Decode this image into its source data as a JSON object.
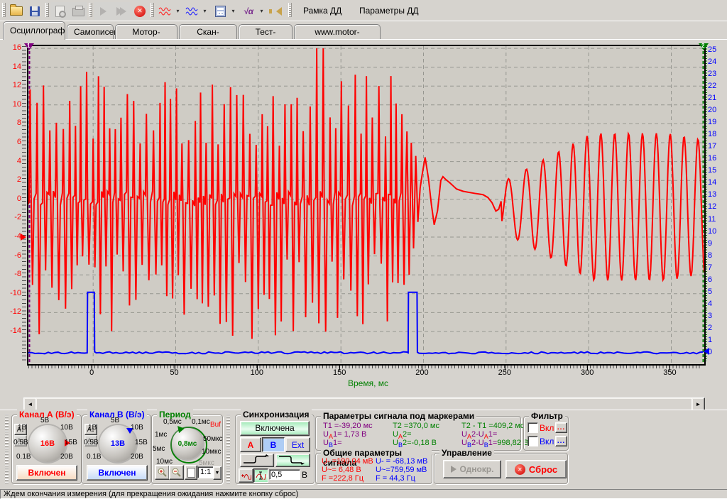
{
  "colors": {
    "red": "#ff0000",
    "blue": "#0000ff",
    "green": "#008000",
    "purple": "#800080",
    "accent_bg": "#d6d3ce"
  },
  "toolbar": {
    "icons": [
      "open-folder",
      "save",
      "print-preview",
      "print",
      "run",
      "run-all",
      "stop",
      "wave-red-channel-a",
      "wave-blue-channel-b",
      "calculator",
      "math-functions",
      "sound"
    ],
    "frame_button": "Рамка ДД",
    "params_button": "Параметры ДД"
  },
  "tabs": {
    "items": [
      "Осциллограф",
      "Самописец",
      "Мотор-тестер",
      "Скан-Тестер",
      "Тест-мастер",
      "www.motor-master.ru"
    ],
    "active_index": 0
  },
  "chart_data": {
    "type": "line",
    "xlabel": "Время, мс",
    "x_ticks": [
      0,
      50,
      100,
      150,
      200,
      250,
      300,
      350
    ],
    "x_range": [
      -39.2,
      370.0
    ],
    "grid": true,
    "left_axis": {
      "channel": "A",
      "color": "#ff0000",
      "ticks": [
        16,
        14,
        12,
        10,
        8,
        6,
        4,
        2,
        0,
        -2,
        -4,
        -6,
        -8,
        -10,
        -12,
        -14
      ],
      "range": [
        -17.46,
        16.23
      ]
    },
    "right_axis": {
      "channel": "B",
      "color": "#0000ff",
      "ticks": [
        25,
        24,
        23,
        22,
        21,
        20,
        19,
        18,
        17,
        16,
        15,
        14,
        13,
        12,
        11,
        10,
        9,
        8,
        7,
        6,
        5,
        4,
        3,
        2,
        1,
        0
      ],
      "range": [
        -0.94,
        25.35
      ]
    },
    "markers": [
      {
        "id": "1",
        "t": -39.2,
        "color": "#800080"
      },
      {
        "id": "2",
        "t": 370.0,
        "color": "#008000"
      }
    ],
    "series": [
      {
        "name": "Канал А",
        "color": "#ff0000",
        "axis": "left",
        "description": "dense ignition-like burst then decaying wave then growing sine",
        "segments": [
          {
            "type": "burst",
            "t": [
              -39.2,
              189.0
            ],
            "period_ms": 3.7,
            "up_peak": [
              5.5,
              13.2
            ],
            "down_peak": [
              -15,
              -5.5
            ],
            "tall_spike": {
              "t": 134.5,
              "v": 16.0
            }
          },
          {
            "type": "keypoints",
            "points": [
              [
                190,
                7.2
              ],
              [
                191.3,
                -8.0
              ],
              [
                192.6,
                6.0
              ],
              [
                194.0,
                -5.2
              ],
              [
                195.3,
                4.6
              ],
              [
                196.6,
                -2.4
              ],
              [
                198.0,
                1.2
              ],
              [
                199.2,
                2.6
              ],
              [
                201.0,
                4.45
              ],
              [
                203.0,
                2.2
              ],
              [
                204.8,
                -0.6
              ],
              [
                206.5,
                -2.7
              ],
              [
                208.5,
                -1.2
              ],
              [
                210.5,
                2.0
              ],
              [
                211.8,
                2.4
              ],
              [
                213.5,
                2.1
              ],
              [
                216,
                1.75
              ],
              [
                220,
                1.1
              ],
              [
                224,
                0.85
              ],
              [
                228,
                0.72
              ],
              [
                232,
                0.6
              ],
              [
                236,
                0.5
              ],
              [
                239,
                0.2
              ],
              [
                241.5,
                -0.35
              ],
              [
                243.8,
                -1.25
              ],
              [
                245.5,
                -1.05
              ],
              [
                247.0,
                -0.2
              ]
            ]
          },
          {
            "type": "sine",
            "t": [
              247.5,
              372.2
            ],
            "center": -0.8,
            "amp": [
              2.6,
              7.8,
              7.0
            ],
            "period_ms": [
              11.5,
              8.4
            ],
            "phase0": -0.887
          }
        ]
      },
      {
        "name": "Канал B",
        "color": "#0000ff",
        "axis": "right",
        "baseline": 0,
        "noise": 0.16,
        "pulses": [
          {
            "t": [
              -3.6,
              0.9
            ],
            "level": 5.0
          },
          {
            "t": [
              190.7,
              196.3
            ],
            "level": 5.0
          }
        ]
      }
    ]
  },
  "channelA": {
    "title": "Канал А (В/э)",
    "value": "16В",
    "button": "Включен",
    "coupling_icon": "A↕",
    "labels": [
      {
        "t": "5В",
        "pos": "t"
      },
      {
        "t": "10В",
        "pos": "tr"
      },
      {
        "t": "15В",
        "pos": "r"
      },
      {
        "t": "20В",
        "pos": "br"
      },
      {
        "t": "1В",
        "pos": "tl"
      },
      {
        "t": "0.5В",
        "pos": "l"
      },
      {
        "t": "0.1В",
        "pos": "bl"
      }
    ]
  },
  "channelB": {
    "title": "Канал B (В/э)",
    "value": "13В",
    "button": "Включен",
    "coupling_icon": "A↕",
    "labels": [
      {
        "t": "5В",
        "pos": "t"
      },
      {
        "t": "10В",
        "pos": "tr"
      },
      {
        "t": "15В",
        "pos": "r"
      },
      {
        "t": "20В",
        "pos": "br"
      },
      {
        "t": "1В",
        "pos": "tl"
      },
      {
        "t": "0.5В",
        "pos": "l"
      },
      {
        "t": "0.1В",
        "pos": "bl"
      }
    ]
  },
  "period": {
    "title": "Период",
    "value": "0,8мс",
    "ratio": "1:1",
    "labels": [
      {
        "t": "0,5мс",
        "pos": "ptl",
        "cls": ""
      },
      {
        "t": "0,1мс",
        "pos": "ptr",
        "cls": ""
      },
      {
        "t": "Buf",
        "pos": "pbuf",
        "cls": "red"
      },
      {
        "t": "1мс",
        "pos": "pl",
        "cls": ""
      },
      {
        "t": "50мкс",
        "pos": "pr",
        "cls": ""
      },
      {
        "t": "5мс",
        "pos": "pll",
        "cls": ""
      },
      {
        "t": "10мкс",
        "pos": "prr",
        "cls": ""
      },
      {
        "t": "10мс",
        "pos": "pbl",
        "cls": ""
      },
      {
        "t": "5мкс",
        "pos": "pbr",
        "cls": "gray"
      }
    ]
  },
  "sync": {
    "title": "Синхронизация",
    "state": "Включена",
    "sources": [
      "A",
      "B",
      "Ext"
    ],
    "active_source": "B",
    "level": "0,5",
    "unit": "В"
  },
  "markers_panel": {
    "title": "Параметры сигнала под маркерами",
    "cells": [
      [
        [
          [
            "T1 =-39,20 мс",
            "p",
            0
          ]
        ],
        [
          [
            "T2 =370,0 мс",
            "g",
            0
          ]
        ],
        [
          [
            "T2 - T1 =409,2 мс",
            "g",
            0
          ]
        ]
      ],
      [
        [
          [
            "U",
            "p",
            0
          ],
          [
            "A",
            "r",
            1
          ],
          [
            "1= 1,73 В",
            "p",
            0
          ]
        ],
        [
          [
            "U",
            "g",
            0
          ],
          [
            "A",
            "r",
            1
          ],
          [
            "2=",
            "g",
            0
          ]
        ],
        [
          [
            "U",
            "p",
            0
          ],
          [
            "A",
            "r",
            1
          ],
          [
            "2-U",
            "p",
            0
          ],
          [
            "A",
            "r",
            1
          ],
          [
            "1=",
            "p",
            0
          ]
        ]
      ],
      [
        [
          [
            "U",
            "p",
            0
          ],
          [
            "B",
            "b",
            1
          ],
          [
            "1=",
            "p",
            0
          ]
        ],
        [
          [
            "U",
            "g",
            0
          ],
          [
            "B",
            "b",
            1
          ],
          [
            "2=-0,18 В",
            "g",
            0
          ]
        ],
        [
          [
            "U",
            "p",
            0
          ],
          [
            "B",
            "b",
            1
          ],
          [
            "2-U",
            "p",
            0
          ],
          [
            "B",
            "b",
            1
          ],
          [
            "1=",
            "p",
            0
          ],
          [
            "998,82 В",
            "g",
            0
          ]
        ]
      ]
    ]
  },
  "filter": {
    "title": "Фильтр",
    "rows": [
      {
        "label": "Вкл",
        "checked": false,
        "color": "red",
        "more": "..."
      },
      {
        "label": "Вкл",
        "checked": false,
        "color": "blue",
        "more": "..."
      }
    ]
  },
  "general": {
    "title": "Общие параметры сигнала",
    "channel_a": [
      "U- =190,04 мВ",
      "U~= 6,48 В",
      "F =222,8 Гц"
    ],
    "channel_b": [
      "U- = -68,13 мВ",
      "U~=759,59 мВ",
      "F = 44,3 Гц"
    ]
  },
  "control": {
    "title": "Управление",
    "single": "Однокр.",
    "reset": "Сброс"
  },
  "statusbar": {
    "text": "Ждем окончания измерения (для прекращения ожидания нажмите кнопку сброс)"
  }
}
